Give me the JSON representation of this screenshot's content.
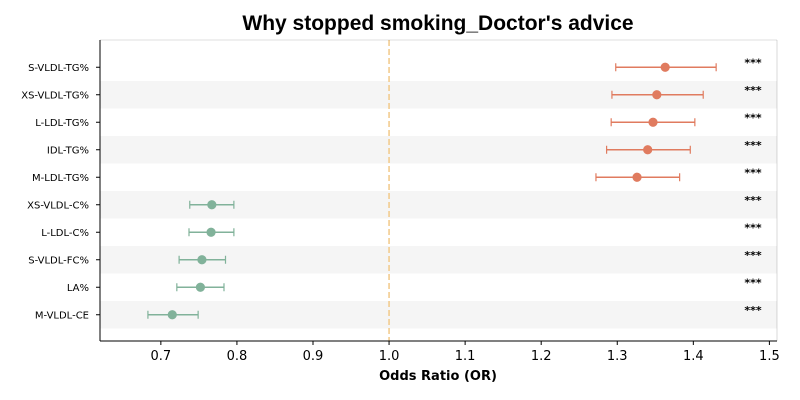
{
  "chart_data": {
    "type": "forest",
    "title": "Why stopped smoking_Doctor's advice",
    "xlabel": "Odds Ratio (OR)",
    "ylabel": "",
    "xlim": [
      0.62,
      1.51
    ],
    "xticks": [
      "0.7",
      "0.8",
      "0.9",
      "1.0",
      "1.1",
      "1.2",
      "1.3",
      "1.4",
      "1.5"
    ],
    "reference_line": 1.0,
    "grid": false,
    "colors": {
      "positive": "#E07B5F",
      "negative": "#81B29A",
      "reference": "#F2CC8F",
      "band": "#F5F5F5"
    },
    "items": [
      {
        "label": "S-VLDL-TG%",
        "or": 1.363,
        "lower": 1.298,
        "upper": 1.43,
        "sig": "***"
      },
      {
        "label": "XS-VLDL-TG%",
        "or": 1.352,
        "lower": 1.293,
        "upper": 1.413,
        "sig": "***"
      },
      {
        "label": "L-LDL-TG%",
        "or": 1.347,
        "lower": 1.292,
        "upper": 1.402,
        "sig": "***"
      },
      {
        "label": "IDL-TG%",
        "or": 1.34,
        "lower": 1.286,
        "upper": 1.396,
        "sig": "***"
      },
      {
        "label": "M-LDL-TG%",
        "or": 1.326,
        "lower": 1.272,
        "upper": 1.382,
        "sig": "***"
      },
      {
        "label": "XS-VLDL-C%",
        "or": 0.767,
        "lower": 0.738,
        "upper": 0.796,
        "sig": "***"
      },
      {
        "label": "L-LDL-C%",
        "or": 0.766,
        "lower": 0.737,
        "upper": 0.796,
        "sig": "***"
      },
      {
        "label": "S-VLDL-FC%",
        "or": 0.754,
        "lower": 0.724,
        "upper": 0.785,
        "sig": "***"
      },
      {
        "label": "LA%",
        "or": 0.752,
        "lower": 0.721,
        "upper": 0.783,
        "sig": "***"
      },
      {
        "label": "M-VLDL-CE",
        "or": 0.715,
        "lower": 0.683,
        "upper": 0.749,
        "sig": "***"
      }
    ]
  }
}
